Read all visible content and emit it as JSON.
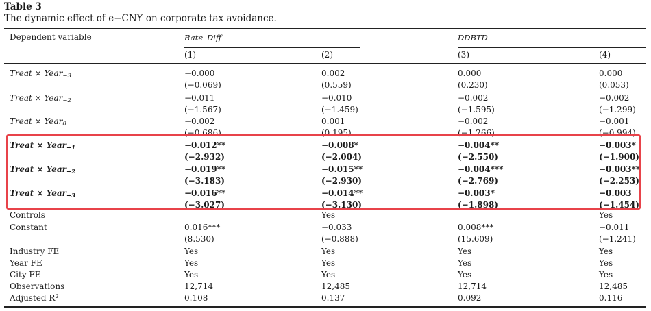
{
  "table": {
    "label": "Table 3",
    "caption": "The dynamic effect of e−CNY on corporate tax avoidance.",
    "stub_header": "Dependent variable",
    "groups": [
      "Rate_Diff",
      "DDBTD"
    ],
    "columns": [
      "(1)",
      "(2)",
      "(3)",
      "(4)"
    ],
    "rows": [
      {
        "name": "treat_year_m3",
        "label": "Treat × Year",
        "sub": "−3",
        "bold": false,
        "coef": [
          "−0.000",
          "0.002",
          "0.000",
          "0.000"
        ],
        "t": [
          "(−0.069)",
          "(0.559)",
          "(0.230)",
          "(0.053)"
        ]
      },
      {
        "name": "treat_year_m2",
        "label": "Treat × Year",
        "sub": "−2",
        "bold": false,
        "coef": [
          "−0.011",
          "−0.010",
          "−0.002",
          "−0.002"
        ],
        "t": [
          "(−1.567)",
          "(−1.459)",
          "(−1.595)",
          "(−1.299)"
        ]
      },
      {
        "name": "treat_year_0",
        "label": "Treat × Year",
        "sub": "0",
        "bold": false,
        "coef": [
          "−0.002",
          "0.001",
          "−0.002",
          "−0.001"
        ],
        "t": [
          "(−0.686)",
          "(0.195)",
          "(−1.266)",
          "(−0.994)"
        ]
      },
      {
        "name": "treat_year_p1",
        "label": "Treat × Year",
        "sub": "+1",
        "bold": true,
        "coef": [
          "−0.012**",
          "−0.008*",
          "−0.004**",
          "−0.003*"
        ],
        "t": [
          "(−2.932)",
          "(−2.004)",
          "(−2.550)",
          "(−1.900)"
        ]
      },
      {
        "name": "treat_year_p2",
        "label": "Treat × Year",
        "sub": "+2",
        "bold": true,
        "coef": [
          "−0.019**",
          "−0.015**",
          "−0.004***",
          "−0.003**"
        ],
        "t": [
          "(−3.183)",
          "(−2.930)",
          "(−2.769)",
          "(−2.253)"
        ]
      },
      {
        "name": "treat_year_p3",
        "label": "Treat × Year",
        "sub": "+3",
        "bold": true,
        "coef": [
          "−0.016**",
          "−0.014**",
          "−0.003*",
          "−0.003"
        ],
        "t": [
          "(−3.027)",
          "(−3.130)",
          "(−1.898)",
          "(−1.454)"
        ]
      }
    ],
    "controls": {
      "label": "Controls",
      "values": [
        "",
        "Yes",
        "",
        "Yes"
      ]
    },
    "constant": {
      "label": "Constant",
      "coef": [
        "0.016***",
        "−0.033",
        "0.008***",
        "−0.011"
      ],
      "t": [
        "(8.530)",
        "(−0.888)",
        "(15.609)",
        "(−1.241)"
      ]
    },
    "fe_rows": [
      {
        "label": "Industry FE",
        "values": [
          "Yes",
          "Yes",
          "Yes",
          "Yes"
        ]
      },
      {
        "label": "Year FE",
        "values": [
          "Yes",
          "Yes",
          "Yes",
          "Yes"
        ]
      },
      {
        "label": "City FE",
        "values": [
          "Yes",
          "Yes",
          "Yes",
          "Yes"
        ]
      }
    ],
    "observations": {
      "label": "Observations",
      "values": [
        "12,714",
        "12,485",
        "12,714",
        "12,485"
      ]
    },
    "adj_r2": {
      "label": "Adjusted R",
      "sup": "2",
      "values": [
        "0.108",
        "0.137",
        "0.092",
        "0.116"
      ]
    }
  },
  "highlight_color": "#e8434a"
}
